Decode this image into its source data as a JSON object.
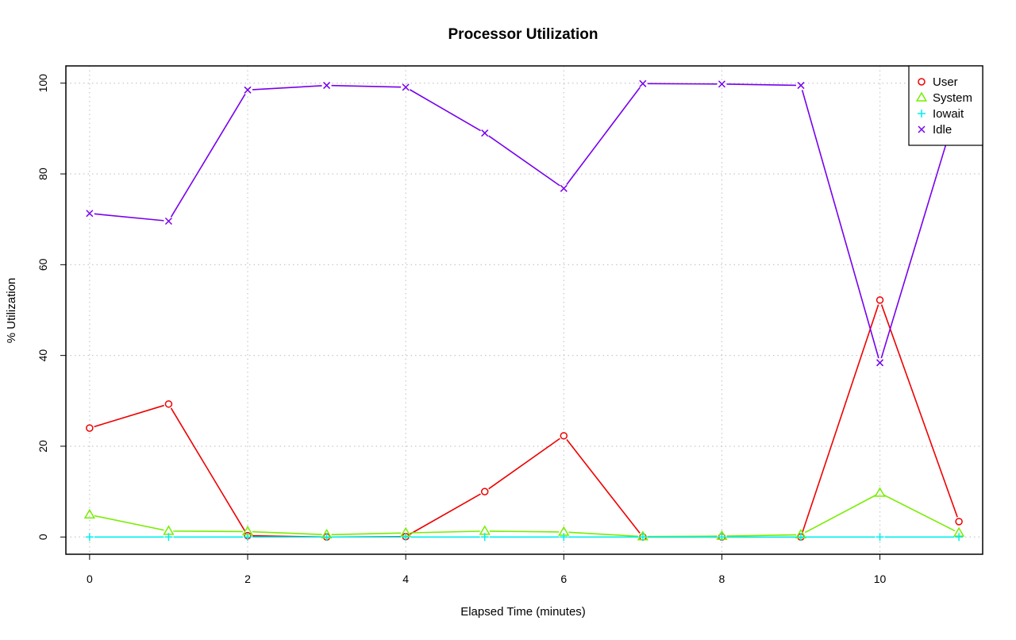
{
  "chart_data": {
    "type": "line",
    "title": "Processor Utilization",
    "xlabel": "Elapsed Time (minutes)",
    "ylabel": "% Utilization",
    "x": [
      0,
      1,
      2,
      3,
      4,
      5,
      6,
      7,
      8,
      9,
      10,
      11
    ],
    "xticks": [
      0,
      2,
      4,
      6,
      8,
      10
    ],
    "yticks": [
      0,
      20,
      40,
      60,
      80,
      100
    ],
    "xlim": [
      -0.3,
      11.3
    ],
    "ylim": [
      -3.8,
      103.8
    ],
    "grid": true,
    "legend_position": "top-right",
    "series": [
      {
        "name": "User",
        "color": "#ee0000",
        "marker": "circle",
        "values": [
          24.0,
          29.3,
          0.3,
          0.0,
          0.1,
          10.0,
          22.3,
          0.0,
          0.0,
          0.0,
          52.2,
          3.4
        ]
      },
      {
        "name": "System",
        "color": "#77ee00",
        "marker": "triangle",
        "values": [
          4.9,
          1.3,
          1.2,
          0.5,
          0.9,
          1.3,
          1.1,
          0.1,
          0.2,
          0.5,
          9.7,
          0.9
        ]
      },
      {
        "name": "Iowait",
        "color": "#00eeee",
        "marker": "plus",
        "values": [
          0,
          0,
          0,
          0,
          0,
          0,
          0,
          0,
          0,
          0,
          0,
          0
        ]
      },
      {
        "name": "Idle",
        "color": "#7700ee",
        "marker": "cross",
        "values": [
          71.3,
          69.6,
          98.5,
          99.5,
          99.1,
          89.0,
          76.8,
          99.9,
          99.8,
          99.5,
          38.4,
          96.0
        ]
      }
    ]
  }
}
